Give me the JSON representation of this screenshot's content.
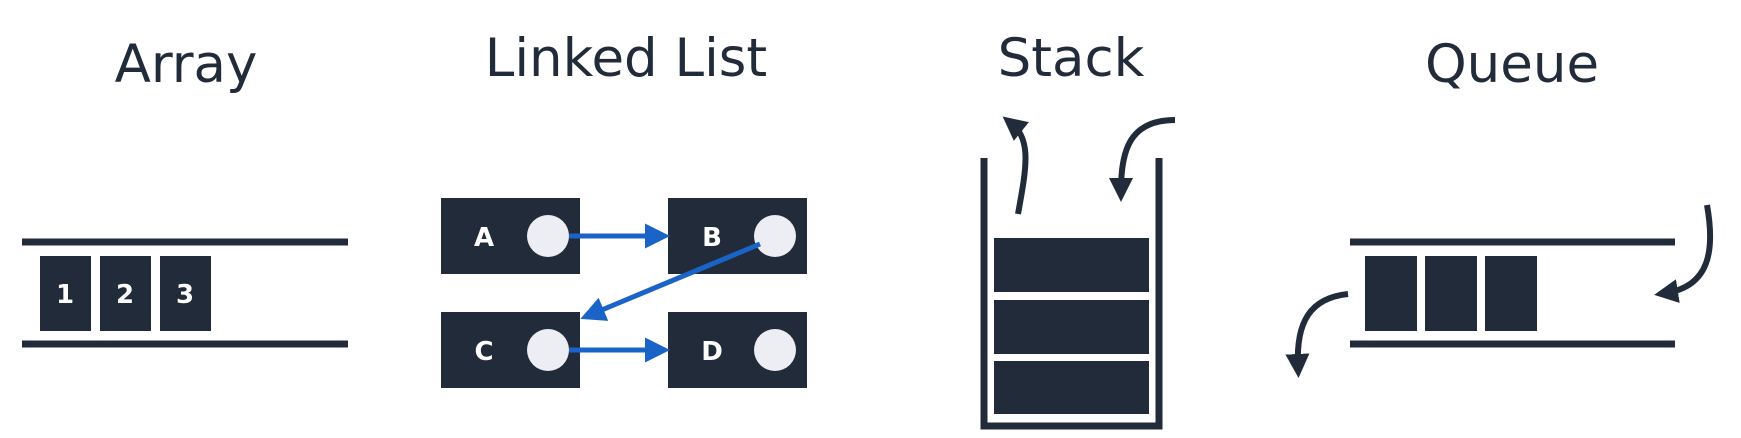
{
  "colors": {
    "dark": "#222b3a",
    "link": "#1a63c7",
    "background": "#ffffff"
  },
  "array": {
    "title": "Array",
    "cells": [
      "1",
      "2",
      "3"
    ]
  },
  "linked_list": {
    "title": "Linked List",
    "nodes": [
      "A",
      "B",
      "C",
      "D"
    ]
  },
  "stack": {
    "title": "Stack",
    "items": 3
  },
  "queue": {
    "title": "Queue",
    "items": 3
  }
}
